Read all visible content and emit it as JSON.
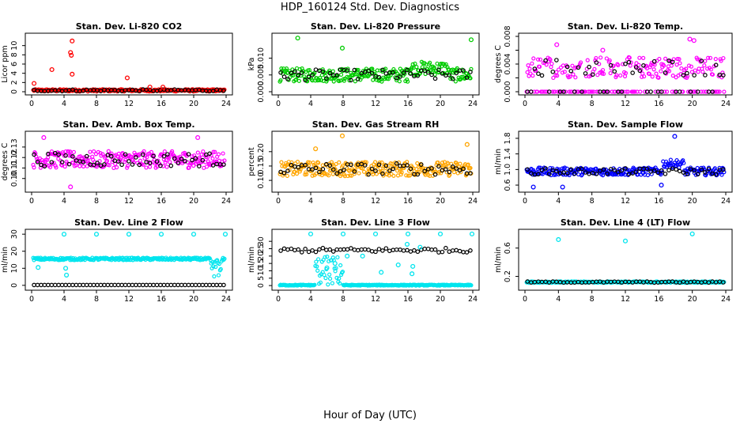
{
  "title": "HDP_160124  Std. Dev. Diagnostics",
  "xlabel": "Hour of Day (UTC)",
  "chart_data": [
    {
      "type": "scatter",
      "title": "Stan. Dev. Li-820 CO2",
      "ylabel": "Licor ppm",
      "color": "#ff0000",
      "xlim": [
        0,
        24
      ],
      "ylim": [
        0,
        12
      ],
      "xticks": [
        "0",
        "4",
        "8",
        "12",
        "16",
        "20",
        "24"
      ],
      "yticks": [
        {
          "v": 0,
          "label": "0"
        },
        {
          "v": 2,
          "label": "2"
        },
        {
          "v": 4,
          "label": "4"
        },
        {
          "v": 6,
          "label": "6"
        },
        {
          "v": 8,
          "label": "8"
        },
        {
          "v": 10,
          "label": "10"
        }
      ],
      "base": 0.3,
      "spread": 0.25,
      "outliers": [
        [
          0.3,
          1.8
        ],
        [
          2.5,
          4.8
        ],
        [
          4.8,
          8.5
        ],
        [
          4.9,
          7.9
        ],
        [
          5.0,
          11.0
        ],
        [
          5.0,
          3.8
        ],
        [
          11.8,
          3.0
        ],
        [
          14.6,
          1.0
        ],
        [
          16.2,
          1.0
        ]
      ]
    },
    {
      "type": "scatter",
      "title": "Stan. Dev. Li-820 Pressure",
      "ylabel": "kPa",
      "color": "#00cc00",
      "xlim": [
        0,
        24
      ],
      "ylim": [
        0,
        0.0165
      ],
      "xticks": [
        "0",
        "4",
        "8",
        "12",
        "16",
        "20",
        "24"
      ],
      "yticks": [
        {
          "v": 0,
          "label": "0.000"
        },
        {
          "v": 0.005,
          "label": "0.005"
        },
        {
          "v": 0.01,
          "label": "0.010"
        }
      ],
      "base": 0.005,
      "spread": 0.002,
      "outliers": [
        [
          2.4,
          0.016
        ],
        [
          7.9,
          0.013
        ],
        [
          23.8,
          0.0155
        ]
      ]
    },
    {
      "type": "scatter",
      "title": "Stan. Dev. Li-820 Temp.",
      "ylabel": "degrees C",
      "color": "#ff00ff",
      "xlim": [
        0,
        24
      ],
      "ylim": [
        0,
        0.008
      ],
      "xticks": [
        "0",
        "4",
        "8",
        "12",
        "16",
        "20",
        "24"
      ],
      "yticks": [
        {
          "v": 0,
          "label": "0.000"
        },
        {
          "v": 0.002,
          "label": ""
        },
        {
          "v": 0.004,
          "label": "0.004"
        },
        {
          "v": 0.006,
          "label": ""
        },
        {
          "v": 0.008,
          "label": "0.008"
        }
      ],
      "base": 0.0035,
      "spread": 0.0015,
      "outliers": [
        [
          3.8,
          0.0068
        ],
        [
          9.3,
          0.006
        ],
        [
          19.7,
          0.0076
        ],
        [
          20.2,
          0.0074
        ]
      ]
    },
    {
      "type": "scatter",
      "title": "Stan. Dev. Amb. Box Temp.",
      "ylabel": "degrees C",
      "color": "#ff00ff",
      "xlim": [
        0,
        24
      ],
      "ylim": [
        0.09,
        0.142
      ],
      "xticks": [
        "0",
        "4",
        "8",
        "12",
        "16",
        "20",
        "24"
      ],
      "yticks": [
        {
          "v": 0.1,
          "label": "0.10"
        },
        {
          "v": 0.11,
          "label": "0.11"
        },
        {
          "v": 0.12,
          "label": "0.12"
        },
        {
          "v": 0.13,
          "label": "0.13"
        }
      ],
      "base": 0.118,
      "spread": 0.008,
      "outliers": [
        [
          1.5,
          0.139
        ],
        [
          4.8,
          0.092
        ],
        [
          20.5,
          0.139
        ]
      ]
    },
    {
      "type": "scatter",
      "title": "Stan. Dev. Gas Stream RH",
      "ylabel": "percent",
      "color": "#ffa500",
      "xlim": [
        0,
        24
      ],
      "ylim": [
        0.07,
        0.26
      ],
      "xticks": [
        "0",
        "4",
        "8",
        "12",
        "16",
        "20",
        "24"
      ],
      "yticks": [
        {
          "v": 0.1,
          "label": "0.10"
        },
        {
          "v": 0.15,
          "label": "0.15"
        },
        {
          "v": 0.2,
          "label": "0.20"
        }
      ],
      "base": 0.14,
      "spread": 0.025,
      "outliers": [
        [
          7.9,
          0.255
        ],
        [
          4.6,
          0.21
        ],
        [
          23.3,
          0.225
        ]
      ]
    },
    {
      "type": "scatter",
      "title": "Stan. Dev. Sample Flow",
      "ylabel": "ml/min",
      "color": "#0000ff",
      "xlim": [
        0,
        24
      ],
      "ylim": [
        0.5,
        1.9
      ],
      "xticks": [
        "0",
        "4",
        "8",
        "12",
        "16",
        "20",
        "24"
      ],
      "yticks": [
        {
          "v": 0.6,
          "label": "0.6"
        },
        {
          "v": 1.0,
          "label": "1.0"
        },
        {
          "v": 1.4,
          "label": "1.4"
        },
        {
          "v": 1.8,
          "label": "1.8"
        }
      ],
      "base": 0.95,
      "spread": 0.1,
      "outliers": [
        [
          1.0,
          0.55
        ],
        [
          4.5,
          0.55
        ],
        [
          17.9,
          1.85
        ],
        [
          16.3,
          0.6
        ]
      ]
    },
    {
      "type": "scatter",
      "title": "Stan. Dev. Line 2 Flow",
      "ylabel": "ml/min",
      "color": "#00e5ee",
      "xlim": [
        0,
        24
      ],
      "ylim": [
        -1,
        31
      ],
      "xticks": [
        "0",
        "4",
        "8",
        "12",
        "16",
        "20",
        "24"
      ],
      "yticks": [
        {
          "v": 0,
          "label": "0"
        },
        {
          "v": 10,
          "label": "10"
        },
        {
          "v": 20,
          "label": "20"
        },
        {
          "v": 30,
          "label": "30"
        }
      ],
      "base": 15.5,
      "spread": 0.7,
      "outliers": [
        [
          4.0,
          30.0
        ],
        [
          8.0,
          30.0
        ],
        [
          12.0,
          30.0
        ],
        [
          16.0,
          30.0
        ],
        [
          20.0,
          30.0
        ],
        [
          23.9,
          30.0
        ],
        [
          0.8,
          10.5
        ],
        [
          4.2,
          10.0
        ],
        [
          4.3,
          6.0
        ]
      ]
    },
    {
      "type": "scatter",
      "title": "Stan. Dev. Line 3 Flow",
      "ylabel": "ml/min",
      "color": "#00e5ee",
      "xlim": [
        0,
        24
      ],
      "ylim": [
        -1,
        36
      ],
      "xticks": [
        "0",
        "4",
        "8",
        "12",
        "16",
        "20",
        "24"
      ],
      "yticks": [
        {
          "v": 0,
          "label": "0"
        },
        {
          "v": 5,
          "label": "5"
        },
        {
          "v": 10,
          "label": "10"
        },
        {
          "v": 15,
          "label": "15"
        },
        {
          "v": 20,
          "label": "20"
        },
        {
          "v": 25,
          "label": "25"
        },
        {
          "v": 30,
          "label": "30"
        }
      ],
      "base": 0.3,
      "spread": 0.3,
      "outliers": [
        [
          4.0,
          35.0
        ],
        [
          8.0,
          35.0
        ],
        [
          12.0,
          35.0
        ],
        [
          16.0,
          35.0
        ],
        [
          20.0,
          35.0
        ],
        [
          23.9,
          35.0
        ],
        [
          6.0,
          12.0
        ],
        [
          7.0,
          15.0
        ],
        [
          8.5,
          20.0
        ],
        [
          10.4,
          20.0
        ],
        [
          12.7,
          9.0
        ],
        [
          14.8,
          14.0
        ],
        [
          16.5,
          8.0
        ],
        [
          16.6,
          13.0
        ],
        [
          15.9,
          28.0
        ],
        [
          17.5,
          26.0
        ]
      ]
    },
    {
      "type": "scatter",
      "title": "Stan. Dev. Line 4 (LT) Flow",
      "ylabel": "ml/min",
      "color": "#00e5ee",
      "xlim": [
        0,
        24
      ],
      "ylim": [
        0.05,
        0.82
      ],
      "xticks": [
        "0",
        "4",
        "8",
        "12",
        "16",
        "20",
        "24"
      ],
      "yticks": [
        {
          "v": 0.2,
          "label": "0.2"
        },
        {
          "v": 0.6,
          "label": "0.6"
        }
      ],
      "base": 0.12,
      "spread": 0.01,
      "outliers": [
        [
          4.0,
          0.72
        ],
        [
          12.0,
          0.7
        ],
        [
          20.0,
          0.8
        ]
      ]
    }
  ]
}
